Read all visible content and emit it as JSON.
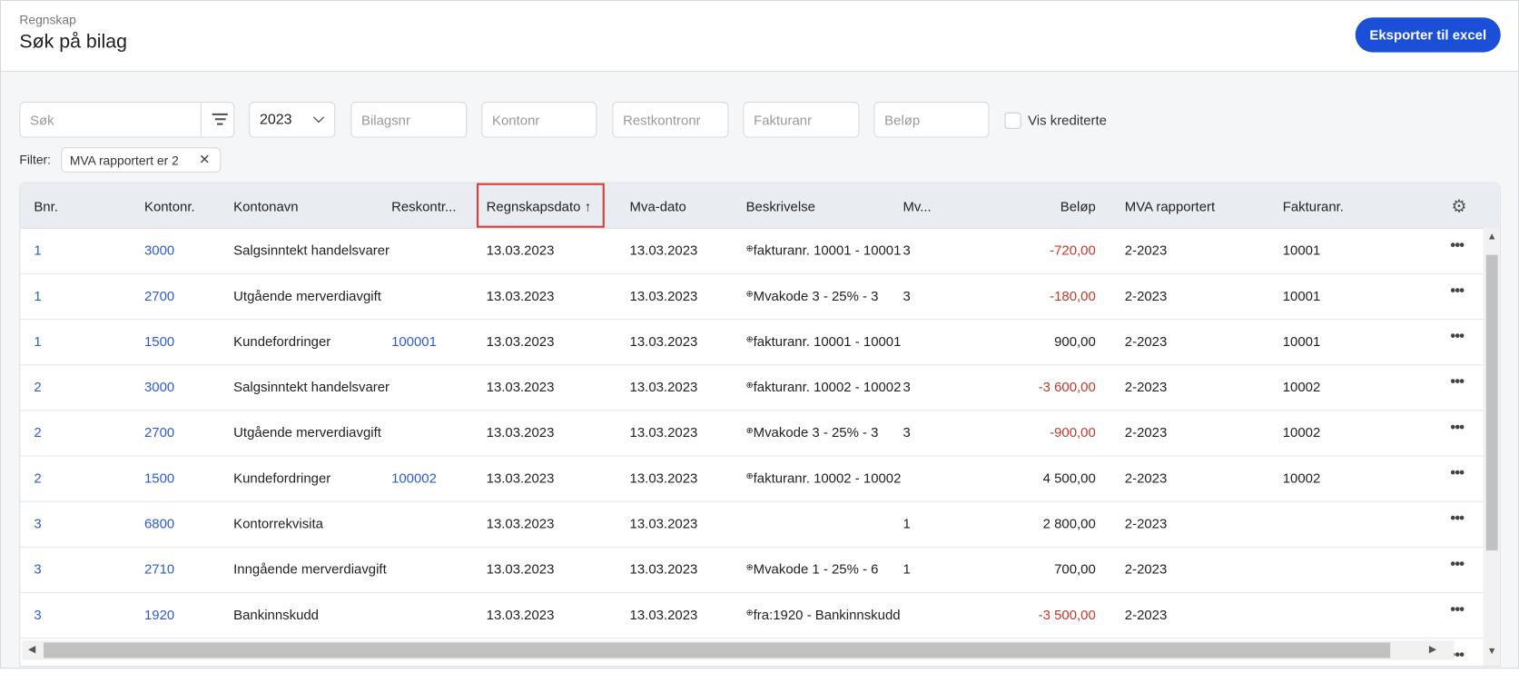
{
  "header": {
    "breadcrumb": "Regnskap",
    "title": "Søk på bilag",
    "export_label": "Eksporter til excel"
  },
  "filters": {
    "search_placeholder": "Søk",
    "year_value": "2023",
    "bilagsnr_placeholder": "Bilagsnr",
    "kontonr_placeholder": "Kontonr",
    "restkontronr_placeholder": "Restkontronr",
    "fakturanr_placeholder": "Fakturanr",
    "belop_placeholder": "Beløp",
    "vis_krediterte_label": "Vis krediterte",
    "vis_krediterte_checked": false,
    "filter_label": "Filter:",
    "active_chip": "MVA rapportert er 2"
  },
  "table": {
    "columns": [
      "Bnr.",
      "Kontonr.",
      "Kontonavn",
      "Reskontr...",
      "Regnskapsdato",
      "Mva-dato",
      "Beskrivelse",
      "Mv...",
      "Beløp",
      "MVA rapportert",
      "Fakturanr."
    ],
    "sort_indicator": "↑",
    "rows": [
      {
        "bnr": "1",
        "kontonr": "3000",
        "kontonavn": "Salgsinntekt handelsvarer",
        "reskontro": "",
        "regnskapsdato": "13.03.2023",
        "mvadato": "13.03.2023",
        "beskrivelse": "fakturanr. 10001 - 10001",
        "mva": "3",
        "belop": "-720,00",
        "mvarapp": "2-2023",
        "fakturanr": "10001"
      },
      {
        "bnr": "1",
        "kontonr": "2700",
        "kontonavn": "Utgående merverdiavgift",
        "reskontro": "",
        "regnskapsdato": "13.03.2023",
        "mvadato": "13.03.2023",
        "beskrivelse": "Mvakode 3 - 25% - 3",
        "mva": "3",
        "belop": "-180,00",
        "mvarapp": "2-2023",
        "fakturanr": "10001"
      },
      {
        "bnr": "1",
        "kontonr": "1500",
        "kontonavn": "Kundefordringer",
        "reskontro": "100001",
        "regnskapsdato": "13.03.2023",
        "mvadato": "13.03.2023",
        "beskrivelse": "fakturanr. 10001 - 10001",
        "mva": "",
        "belop": "900,00",
        "mvarapp": "2-2023",
        "fakturanr": "10001"
      },
      {
        "bnr": "2",
        "kontonr": "3000",
        "kontonavn": "Salgsinntekt handelsvarer",
        "reskontro": "",
        "regnskapsdato": "13.03.2023",
        "mvadato": "13.03.2023",
        "beskrivelse": "fakturanr. 10002 - 10002",
        "mva": "3",
        "belop": "-3 600,00",
        "mvarapp": "2-2023",
        "fakturanr": "10002"
      },
      {
        "bnr": "2",
        "kontonr": "2700",
        "kontonavn": "Utgående merverdiavgift",
        "reskontro": "",
        "regnskapsdato": "13.03.2023",
        "mvadato": "13.03.2023",
        "beskrivelse": "Mvakode 3 - 25% - 3",
        "mva": "3",
        "belop": "-900,00",
        "mvarapp": "2-2023",
        "fakturanr": "10002"
      },
      {
        "bnr": "2",
        "kontonr": "1500",
        "kontonavn": "Kundefordringer",
        "reskontro": "100002",
        "regnskapsdato": "13.03.2023",
        "mvadato": "13.03.2023",
        "beskrivelse": "fakturanr. 10002 - 10002",
        "mva": "",
        "belop": "4 500,00",
        "mvarapp": "2-2023",
        "fakturanr": "10002"
      },
      {
        "bnr": "3",
        "kontonr": "6800",
        "kontonavn": "Kontorrekvisita",
        "reskontro": "",
        "regnskapsdato": "13.03.2023",
        "mvadato": "13.03.2023",
        "beskrivelse": "",
        "mva": "1",
        "belop": "2 800,00",
        "mvarapp": "2-2023",
        "fakturanr": ""
      },
      {
        "bnr": "3",
        "kontonr": "2710",
        "kontonavn": "Inngående merverdiavgift",
        "reskontro": "",
        "regnskapsdato": "13.03.2023",
        "mvadato": "13.03.2023",
        "beskrivelse": "Mvakode 1 - 25% - 6",
        "mva": "1",
        "belop": "700,00",
        "mvarapp": "2-2023",
        "fakturanr": ""
      },
      {
        "bnr": "3",
        "kontonr": "1920",
        "kontonavn": "Bankinnskudd",
        "reskontro": "",
        "regnskapsdato": "13.03.2023",
        "mvadato": "13.03.2023",
        "beskrivelse": "fra:1920 - Bankinnskudd",
        "mva": "",
        "belop": "-3 500,00",
        "mvarapp": "2-2023",
        "fakturanr": ""
      }
    ],
    "row_actions_label": "•••"
  },
  "colors": {
    "accent": "#1b4fd8",
    "link": "#2d5bd7",
    "negative": "#c0392b",
    "sort_highlight": "#d9403a"
  },
  "icons": {
    "filter": "filter-icon",
    "select": "chevron-down-icon",
    "settings": "gear-icon",
    "row_menu": "more-horizontal-icon",
    "chip_remove": "close-icon"
  }
}
